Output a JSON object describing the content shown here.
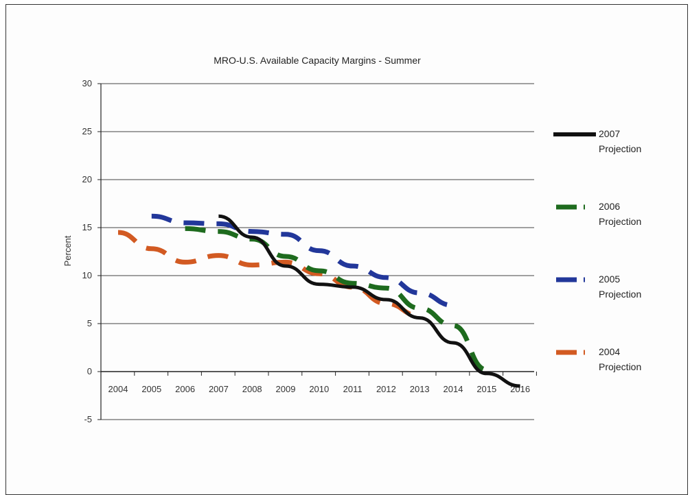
{
  "chart_data": {
    "type": "line",
    "title": "MRO-U.S. Available Capacity Margins - Summer",
    "xlabel": "",
    "ylabel": "Percent",
    "ylim": [
      -5,
      30
    ],
    "yticks": [
      30,
      25,
      20,
      15,
      10,
      5,
      0,
      -5
    ],
    "categories": [
      "2004",
      "2005",
      "2006",
      "2007",
      "2008",
      "2009",
      "2010",
      "2011",
      "2012",
      "2013",
      "2014",
      "2015",
      "2016"
    ],
    "grid": true,
    "legend_position": "right",
    "series": [
      {
        "name": "2007 Projection",
        "color": "#111111",
        "style": "solid",
        "values": [
          null,
          null,
          null,
          16.2,
          14.0,
          11.0,
          9.1,
          8.8,
          7.5,
          5.6,
          3.0,
          -0.2,
          -1.5
        ]
      },
      {
        "name": "2006 Projection",
        "color": "#1e6b1e",
        "style": "dash",
        "values": [
          null,
          null,
          14.9,
          14.6,
          13.8,
          12.0,
          10.5,
          9.2,
          8.7,
          6.6,
          4.8,
          0.2,
          null
        ]
      },
      {
        "name": "2005 Projection",
        "color": "#22379a",
        "style": "dash",
        "values": [
          null,
          16.2,
          15.5,
          15.4,
          14.6,
          14.3,
          12.6,
          11.0,
          9.8,
          8.2,
          6.9,
          null,
          null
        ]
      },
      {
        "name": "2004 Projection",
        "color": "#d25a22",
        "style": "dash",
        "values": [
          14.5,
          12.8,
          11.4,
          12.1,
          11.1,
          11.4,
          10.2,
          8.8,
          7.1,
          5.8,
          null,
          null,
          null
        ]
      }
    ],
    "legend": [
      {
        "line1": "2007",
        "line2": "Projection"
      },
      {
        "line1": "2006",
        "line2": "Projection"
      },
      {
        "line1": "2005",
        "line2": "Projection"
      },
      {
        "line1": "2004",
        "line2": "Projection"
      }
    ]
  }
}
